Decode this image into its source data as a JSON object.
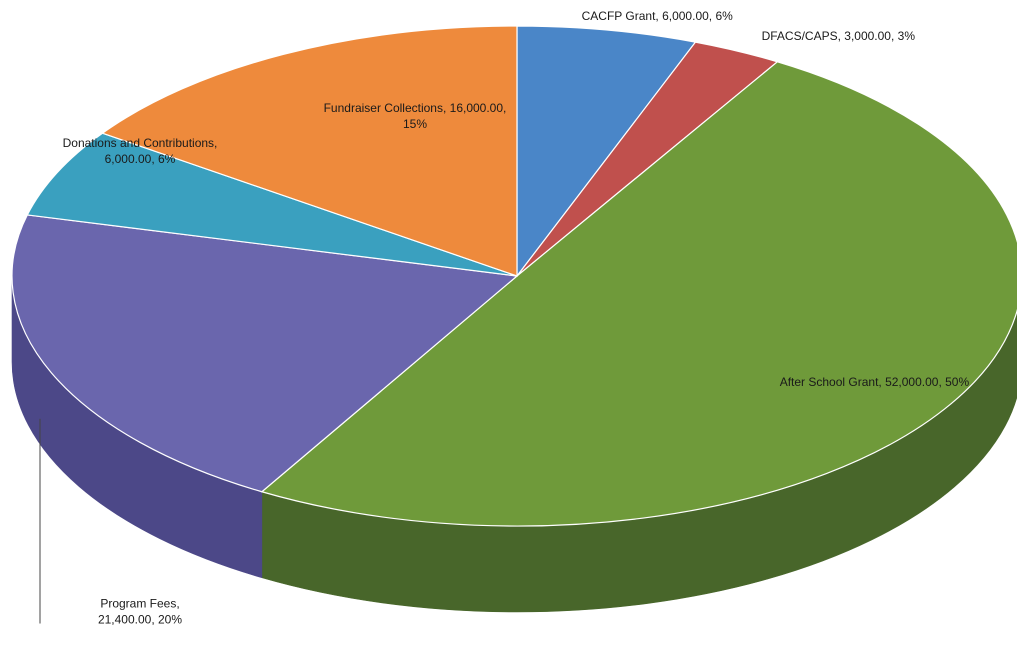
{
  "chart_data": {
    "type": "pie",
    "style": "3d",
    "title": "",
    "slices": [
      {
        "label": "CACFP Grant",
        "value": 6000.0,
        "percent": 6,
        "color": "#4a86c8",
        "side_color": "#2f5f93",
        "label_lines": [
          "CACFP Grant, 6,000.00, 6%"
        ]
      },
      {
        "label": "DFACS/CAPS",
        "value": 3000.0,
        "percent": 3,
        "color": "#c0504d",
        "side_color": "#8c3533",
        "label_lines": [
          "DFACS/CAPS, 3,000.00, 3%"
        ]
      },
      {
        "label": "After School Grant",
        "value": 52000.0,
        "percent": 50,
        "color": "#6f9a3a",
        "side_color": "#48662a",
        "label_lines": [
          "After School Grant, 52,000.00, 50%"
        ]
      },
      {
        "label": "Program Fees",
        "value": 21400.0,
        "percent": 20,
        "color": "#6a66ad",
        "side_color": "#4c4888",
        "label_lines": [
          "Program Fees,",
          "21,400.00, 20%"
        ]
      },
      {
        "label": "Donations and Contributions",
        "value": 6000.0,
        "percent": 6,
        "color": "#3aa0bf",
        "side_color": "#2a7188",
        "label_lines": [
          "Donations and Contributions,",
          "6,000.00, 6%"
        ]
      },
      {
        "label": "Fundraiser Collections",
        "value": 16000.0,
        "percent": 15,
        "color": "#ee8a3c",
        "side_color": "#b0642a",
        "label_lines": [
          "Fundraiser Collections, 16,000.00,",
          "15%"
        ]
      }
    ]
  }
}
